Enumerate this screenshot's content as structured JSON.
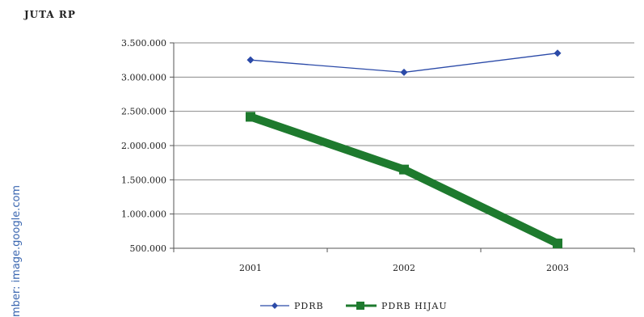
{
  "source_note": "mber: image.google.com",
  "colors": {
    "pdrb": "#2b4aa8",
    "pdrb_hijau": "#1e7a2e",
    "grid": "#8a8a8a",
    "source": "#3a66b0"
  },
  "chart_data": {
    "type": "line",
    "title": "",
    "ylabel": "JUTA RP",
    "xlabel": "",
    "categories": [
      "2001",
      "2002",
      "2003"
    ],
    "ylim": [
      500000,
      3500000
    ],
    "yticks": [
      500000,
      1000000,
      1500000,
      2000000,
      2500000,
      3000000,
      3500000
    ],
    "ytick_labels": [
      "500.000",
      "1.000.000",
      "1.500.000",
      "2.000.000",
      "2.500.000",
      "3.000.000",
      "3.500.000"
    ],
    "grid": "horizontal",
    "legend_position": "bottom",
    "series": [
      {
        "name": "PDRB",
        "values": [
          3250000,
          3070000,
          3350000
        ],
        "marker": "diamond"
      },
      {
        "name": "PDRB HIJAU",
        "values": [
          2420000,
          1650000,
          570000
        ],
        "marker": "square"
      }
    ]
  }
}
